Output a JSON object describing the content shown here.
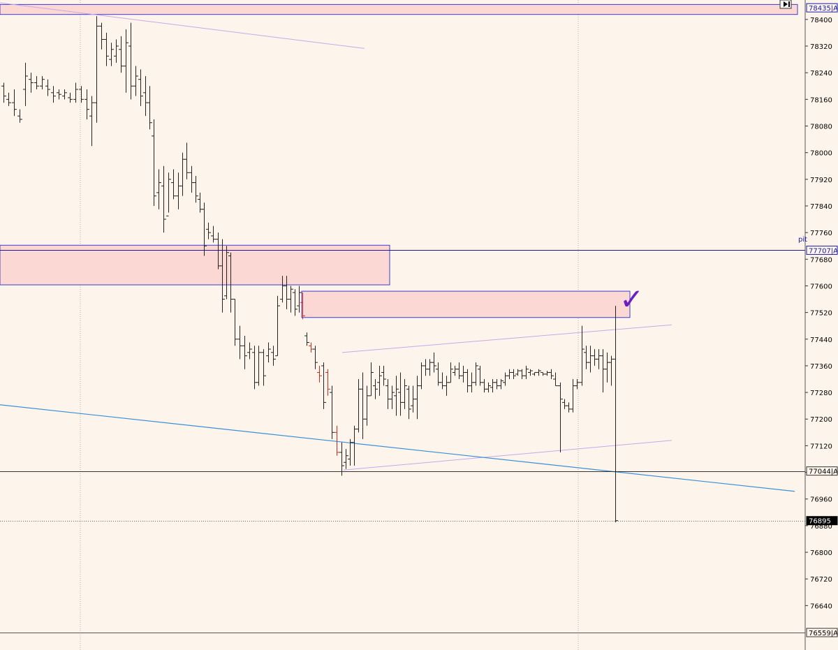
{
  "chart_data": {
    "type": "bar",
    "title": "",
    "xlabel": "",
    "ylabel": "",
    "ylim": [
      76559,
      78450
    ],
    "yticks": [
      78400,
      78320,
      78240,
      78160,
      78080,
      78000,
      77920,
      77840,
      77760,
      77680,
      77600,
      77520,
      77440,
      77360,
      77280,
      77200,
      77120,
      77040,
      76960,
      76880,
      76800,
      76720,
      76640
    ],
    "tags": [
      {
        "label": "78435|A",
        "value": 78435,
        "style": "blue"
      },
      {
        "label": "77707|A",
        "value": 77707,
        "style": "blue"
      },
      {
        "label": "77044|A",
        "value": 77044,
        "style": "plain"
      },
      {
        "label": "76895",
        "value": 76895,
        "style": "black"
      },
      {
        "label": "76559|A",
        "value": 76559,
        "style": "plain"
      }
    ],
    "pit_label": "pit",
    "annotation": "✓",
    "zones": [
      {
        "name": "top-zone",
        "x0": 0,
        "x1": 1142,
        "y_high": 78445,
        "y_low": 78415
      },
      {
        "name": "mid-zone",
        "x0": 0,
        "x1": 558,
        "y_high": 77722,
        "y_low": 77603
      },
      {
        "name": "upper-right-zone",
        "x0": 432,
        "x1": 902,
        "y_high": 77584,
        "y_low": 77505
      }
    ],
    "levels": [
      {
        "name": "pit-level",
        "value": 77707,
        "color": "#1a1a8c"
      },
      {
        "name": "low-level",
        "value": 77044,
        "color": "#333333"
      },
      {
        "name": "bottom-level",
        "value": 76559,
        "color": "#555555"
      },
      {
        "name": "last-price-level",
        "value": 76895,
        "color": "#666666",
        "dotted": true
      }
    ],
    "trendlines": [
      {
        "name": "top-trendline",
        "x0": 0,
        "y0": 78450,
        "x1": 522,
        "y1": 78313,
        "color": "#c8a8e8"
      },
      {
        "name": "channel-upper-line",
        "x0": 490,
        "y0": 77400,
        "x1": 962,
        "y1": 77483,
        "color": "#c8a8e8"
      },
      {
        "name": "channel-lower-line",
        "x0": 492,
        "y0": 77047,
        "x1": 962,
        "y1": 77136,
        "color": "#c8a8e8"
      },
      {
        "name": "blue-trendline",
        "x0": 0,
        "y0": 77243,
        "x1": 1138,
        "y1": 76983,
        "color": "#3a8fd9"
      }
    ],
    "x_grid": [
      115,
      828
    ],
    "bars": [
      [
        5,
        78210,
        78150,
        78200,
        78170
      ],
      [
        12,
        78180,
        78140,
        78160,
        78150
      ],
      [
        20,
        78190,
        78110,
        78150,
        78130
      ],
      [
        28,
        78130,
        78090,
        78110,
        78100
      ],
      [
        36,
        78270,
        78140,
        78190,
        78230
      ],
      [
        44,
        78240,
        78180,
        78220,
        78210
      ],
      [
        52,
        78230,
        78190,
        78210,
        78200
      ],
      [
        60,
        78230,
        78190,
        78200,
        78220
      ],
      [
        68,
        78220,
        78170,
        78200,
        78190
      ],
      [
        76,
        78200,
        78150,
        78180,
        78170
      ],
      [
        84,
        78190,
        78160,
        78180,
        78175
      ],
      [
        92,
        78190,
        78160,
        78170,
        78180
      ],
      [
        100,
        78180,
        78150,
        78165,
        78160
      ],
      [
        108,
        78210,
        78150,
        78160,
        78190
      ],
      [
        116,
        78200,
        78150,
        78190,
        78160
      ],
      [
        124,
        78190,
        78100,
        78160,
        78130
      ],
      [
        131,
        78170,
        78020,
        78110,
        78150
      ],
      [
        138,
        78410,
        78090,
        78150,
        78380
      ],
      [
        145,
        78390,
        78310,
        78380,
        78340
      ],
      [
        152,
        78360,
        78260,
        78340,
        78290
      ],
      [
        159,
        78330,
        78260,
        78280,
        78310
      ],
      [
        166,
        78340,
        78270,
        78290,
        78320
      ],
      [
        173,
        78350,
        78240,
        78310,
        78260
      ],
      [
        180,
        78370,
        78180,
        78260,
        78330
      ],
      [
        187,
        78390,
        78160,
        78320,
        78200
      ],
      [
        194,
        78260,
        78170,
        78200,
        78230
      ],
      [
        201,
        78250,
        78140,
        78220,
        78170
      ],
      [
        208,
        78230,
        78110,
        78180,
        78150
      ],
      [
        214,
        78200,
        78070,
        78150,
        78090
      ],
      [
        220,
        78100,
        77840,
        78050,
        77870
      ],
      [
        227,
        77950,
        77830,
        77880,
        77910
      ],
      [
        234,
        77960,
        77760,
        77900,
        77800
      ],
      [
        241,
        77940,
        77820,
        77810,
        77920
      ],
      [
        248,
        77950,
        77860,
        77910,
        77870
      ],
      [
        255,
        77940,
        77830,
        77870,
        77900
      ],
      [
        261,
        78000,
        77870,
        77900,
        77980
      ],
      [
        267,
        78030,
        77920,
        77980,
        77940
      ],
      [
        274,
        77960,
        77880,
        77940,
        77910
      ],
      [
        280,
        77930,
        77850,
        77910,
        77870
      ],
      [
        286,
        77880,
        77820,
        77860,
        77830
      ],
      [
        292,
        77850,
        77690,
        77830,
        77720
      ],
      [
        298,
        77790,
        77740,
        77770,
        77760
      ],
      [
        305,
        77780,
        77730,
        77750,
        77740
      ],
      [
        312,
        77760,
        77650,
        77740,
        77660
      ],
      [
        318,
        77740,
        77520,
        77660,
        77560
      ],
      [
        324,
        77720,
        77560,
        77570,
        77700
      ],
      [
        330,
        77700,
        77520,
        77690,
        77560
      ],
      [
        336,
        77560,
        77420,
        77560,
        77440
      ],
      [
        343,
        77480,
        77380,
        77440,
        77420
      ],
      [
        350,
        77450,
        77350,
        77420,
        77390
      ],
      [
        357,
        77430,
        77380,
        77400,
        77410
      ],
      [
        364,
        77420,
        77290,
        77400,
        77310
      ],
      [
        370,
        77420,
        77300,
        77310,
        77400
      ],
      [
        377,
        77410,
        77300,
        77400,
        77330
      ],
      [
        384,
        77430,
        77370,
        77390,
        77410
      ],
      [
        391,
        77420,
        77360,
        77400,
        77380
      ],
      [
        397,
        77570,
        77390,
        77390,
        77540
      ],
      [
        404,
        77630,
        77550,
        77560,
        77600
      ],
      [
        410,
        77630,
        77530,
        77600,
        77560
      ],
      [
        416,
        77600,
        77520,
        77560,
        77590
      ],
      [
        422,
        77590,
        77510,
        77580,
        77530
      ],
      [
        428,
        77600,
        77520,
        77540,
        77580
      ],
      [
        433,
        77580,
        77500,
        77550,
        77510
      ],
      [
        439,
        77460,
        77420,
        77450,
        77430
      ],
      [
        445,
        77430,
        77400,
        77420,
        77410
      ],
      [
        451,
        77420,
        77350,
        77410,
        77370
      ],
      [
        457,
        77360,
        77310,
        77340,
        77330
      ],
      [
        463,
        77370,
        77230,
        77360,
        77250
      ],
      [
        469,
        77350,
        77270,
        77340,
        77290
      ],
      [
        475,
        77300,
        77140,
        77280,
        77160
      ],
      [
        482,
        77180,
        77090,
        77160,
        77100
      ],
      [
        489,
        77130,
        77030,
        77100,
        77060
      ],
      [
        495,
        77110,
        77050,
        77070,
        77090
      ],
      [
        501,
        77140,
        77060,
        77080,
        77130
      ],
      [
        507,
        77180,
        77060,
        77130,
        77170
      ],
      [
        513,
        77320,
        77160,
        77170,
        77290
      ],
      [
        519,
        77340,
        77140,
        77290,
        77200
      ],
      [
        525,
        77300,
        77180,
        77200,
        77270
      ],
      [
        531,
        77370,
        77270,
        77270,
        77340
      ],
      [
        537,
        77320,
        77260,
        77300,
        77290
      ],
      [
        543,
        77360,
        77270,
        77310,
        77330
      ],
      [
        549,
        77360,
        77300,
        77340,
        77320
      ],
      [
        555,
        77320,
        77230,
        77300,
        77260
      ],
      [
        561,
        77300,
        77230,
        77260,
        77280
      ],
      [
        567,
        77330,
        77210,
        77270,
        77290
      ],
      [
        573,
        77340,
        77210,
        77280,
        77250
      ],
      [
        579,
        77320,
        77230,
        77250,
        77300
      ],
      [
        585,
        77300,
        77200,
        77290,
        77230
      ],
      [
        591,
        77300,
        77220,
        77240,
        77260
      ],
      [
        597,
        77330,
        77200,
        77260,
        77300
      ],
      [
        603,
        77370,
        77290,
        77300,
        77360
      ],
      [
        609,
        77380,
        77330,
        77360,
        77350
      ],
      [
        615,
        77380,
        77330,
        77350,
        77370
      ],
      [
        621,
        77400,
        77340,
        77370,
        77360
      ],
      [
        627,
        77370,
        77300,
        77350,
        77310
      ],
      [
        633,
        77340,
        77290,
        77310,
        77300
      ],
      [
        639,
        77330,
        77270,
        77300,
        77310
      ],
      [
        645,
        77370,
        77310,
        77310,
        77350
      ],
      [
        651,
        77360,
        77330,
        77340,
        77350
      ],
      [
        657,
        77370,
        77320,
        77350,
        77330
      ],
      [
        663,
        77360,
        77310,
        77330,
        77340
      ],
      [
        669,
        77350,
        77280,
        77340,
        77300
      ],
      [
        675,
        77340,
        77280,
        77300,
        77310
      ],
      [
        681,
        77370,
        77300,
        77310,
        77360
      ],
      [
        687,
        77360,
        77300,
        77350,
        77310
      ],
      [
        693,
        77320,
        77280,
        77310,
        77290
      ],
      [
        699,
        77310,
        77280,
        77290,
        77300
      ],
      [
        705,
        77320,
        77280,
        77295,
        77310
      ],
      [
        711,
        77320,
        77290,
        77310,
        77300
      ],
      [
        717,
        77320,
        77290,
        77300,
        77315
      ],
      [
        723,
        77340,
        77300,
        77310,
        77330
      ],
      [
        729,
        77350,
        77320,
        77330,
        77340
      ],
      [
        735,
        77350,
        77320,
        77340,
        77330
      ],
      [
        741,
        77350,
        77330,
        77335,
        77345
      ],
      [
        747,
        77350,
        77320,
        77345,
        77330
      ],
      [
        753,
        77360,
        77320,
        77330,
        77350
      ],
      [
        759,
        77350,
        77330,
        77340,
        77345
      ],
      [
        765,
        77340,
        77330,
        77335,
        77340
      ],
      [
        771,
        77350,
        77330,
        77340,
        77345
      ],
      [
        777,
        77340,
        77330,
        77340,
        77335
      ],
      [
        783,
        77345,
        77330,
        77335,
        77340
      ],
      [
        789,
        77350,
        77320,
        77340,
        77330
      ],
      [
        795,
        77340,
        77300,
        77320,
        77300
      ],
      [
        802,
        77310,
        77100,
        77300,
        77260
      ],
      [
        808,
        77260,
        77230,
        77250,
        77240
      ],
      [
        814,
        77250,
        77220,
        77240,
        77230
      ],
      [
        820,
        77320,
        77220,
        77230,
        77300
      ],
      [
        826,
        77320,
        77290,
        77300,
        77310
      ],
      [
        833,
        77480,
        77300,
        77310,
        77410
      ],
      [
        839,
        77420,
        77350,
        77400,
        77370
      ],
      [
        845,
        77420,
        77340,
        77370,
        77390
      ],
      [
        851,
        77410,
        77360,
        77390,
        77380
      ],
      [
        857,
        77410,
        77350,
        77380,
        77390
      ],
      [
        863,
        77410,
        77280,
        77390,
        77350
      ],
      [
        869,
        77400,
        77310,
        77350,
        77370
      ],
      [
        875,
        77390,
        77300,
        77370,
        77380
      ],
      [
        881,
        77540,
        76890,
        77380,
        76895
      ]
    ]
  }
}
